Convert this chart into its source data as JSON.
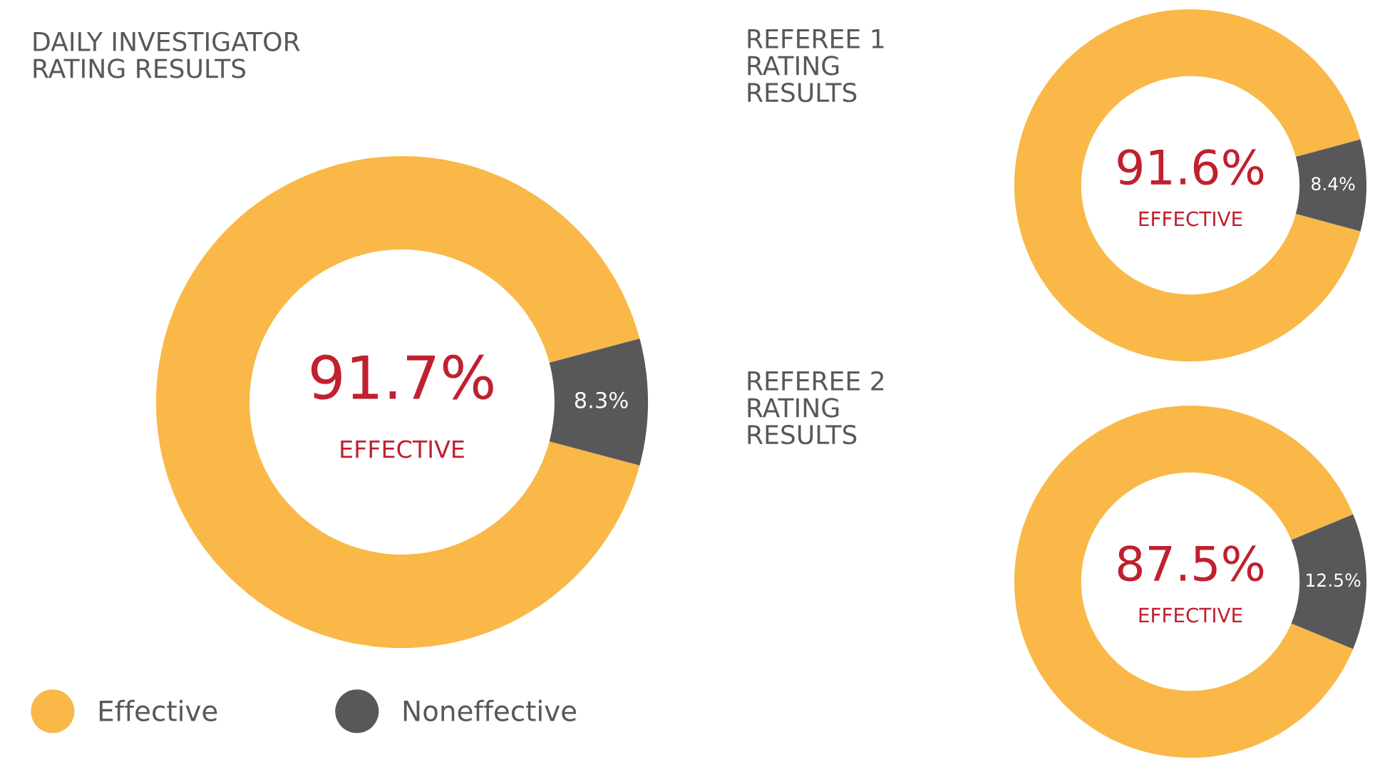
{
  "chart_data": [
    {
      "type": "donut",
      "title": "DAILY INVESTIGATOR\nRATING RESULTS",
      "categories": [
        "Effective",
        "Noneffective"
      ],
      "values": [
        91.7,
        8.3
      ],
      "value_labels": [
        "91.7%",
        "8.3%"
      ],
      "colors": [
        "#f9b847",
        "#58585a"
      ],
      "annotations": [
        "EFFECTIVE"
      ],
      "legend": "bottom left"
    },
    {
      "type": "donut",
      "title": "REFEREE 1\nRATING\nRESULTS",
      "categories": [
        null,
        null
      ],
      "values": [
        91.6,
        8.4
      ],
      "value_labels": [
        "91.6%",
        "8.4%"
      ],
      "colors": [
        "#f9b847",
        "#58585a"
      ],
      "annotations": [
        "EFFECTIVE"
      ]
    },
    {
      "type": "donut",
      "title": "REFEREE 2\nRATING\nRESULTS",
      "categories": [
        null,
        null
      ],
      "values": [
        87.5,
        12.5
      ],
      "value_labels": [
        "87.5%",
        "12.5%"
      ],
      "colors": [
        "#f9b847",
        "#58585a"
      ],
      "annotations": [
        "EFFECTIVE"
      ]
    }
  ]
}
